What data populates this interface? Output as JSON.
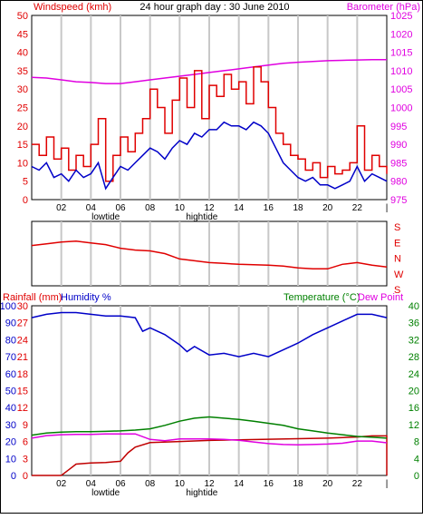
{
  "colors": {
    "red": "#e00000",
    "blue": "#0000c8",
    "magenta": "#e000e0",
    "green": "#008000",
    "darkred": "#c00000",
    "grid": "#c8c8c8"
  },
  "chart_data": [
    {
      "type": "line",
      "title": "24 hour graph day : 30 June 2010",
      "ylabel_left": "Windspeed (kmh)",
      "ylabel_right": "Barometer (hPa)",
      "ylim_left": [
        0,
        50
      ],
      "ylim_right": [
        975,
        1025
      ],
      "yticks_left": [
        "0",
        "5",
        "10",
        "15",
        "20",
        "25",
        "30",
        "35",
        "40",
        "45",
        "50"
      ],
      "yticks_right": [
        "975",
        "980",
        "985",
        "990",
        "995",
        "1000",
        "1005",
        "1010",
        "1015",
        "1020",
        "1025"
      ],
      "xlim": [
        0,
        24
      ],
      "xticks": [
        "02",
        "04",
        "06",
        "08",
        "10",
        "12",
        "14",
        "16",
        "18",
        "20",
        "22",
        "|"
      ],
      "tide_labels": [
        {
          "x": 5,
          "label": "lowtide"
        },
        {
          "x": 11.5,
          "label": "hightide"
        }
      ],
      "series": [
        {
          "color": "magenta",
          "axis": "right",
          "x": [
            0,
            1,
            2,
            3,
            4,
            5,
            6,
            7,
            8,
            9,
            10,
            11,
            12,
            13,
            14,
            15,
            16,
            17,
            18,
            19,
            20,
            21,
            22,
            23,
            24
          ],
          "values": [
            1008.2,
            1008,
            1007.5,
            1007,
            1006.8,
            1006.5,
            1006.5,
            1007,
            1007.5,
            1008,
            1008.5,
            1009,
            1009.5,
            1010,
            1010.5,
            1011,
            1011.5,
            1012,
            1012.3,
            1012.5,
            1012.7,
            1012.8,
            1012.9,
            1013,
            1013
          ]
        },
        {
          "color": "red",
          "axis": "left",
          "x": [
            0,
            0.5,
            1,
            1.5,
            2,
            2.5,
            3,
            3.5,
            4,
            4.5,
            5,
            5.5,
            6,
            6.5,
            7,
            7.5,
            8,
            8.5,
            9,
            9.5,
            10,
            10.5,
            11,
            11.5,
            12,
            12.5,
            13,
            13.5,
            14,
            14.5,
            15,
            15.5,
            16,
            16.5,
            17,
            17.5,
            18,
            18.5,
            19,
            19.5,
            20,
            20.5,
            21,
            21.5,
            22,
            22.5,
            23,
            23.5,
            24
          ],
          "values": [
            15,
            12,
            17,
            11,
            14,
            8,
            12,
            9,
            15,
            22,
            5,
            12,
            17,
            13,
            18,
            22,
            30,
            25,
            18,
            27,
            33,
            25,
            35,
            22,
            31,
            28,
            34,
            30,
            32,
            26,
            36,
            32,
            25,
            18,
            15,
            12,
            11,
            8,
            10,
            6,
            9,
            7,
            8,
            10,
            20,
            8,
            12,
            9,
            7
          ]
        },
        {
          "color": "blue",
          "axis": "left",
          "x": [
            0,
            0.5,
            1,
            1.5,
            2,
            2.5,
            3,
            3.5,
            4,
            4.5,
            5,
            5.5,
            6,
            6.5,
            7,
            7.5,
            8,
            8.5,
            9,
            9.5,
            10,
            10.5,
            11,
            11.5,
            12,
            12.5,
            13,
            13.5,
            14,
            14.5,
            15,
            15.5,
            16,
            16.5,
            17,
            17.5,
            18,
            18.5,
            19,
            19.5,
            20,
            20.5,
            21,
            21.5,
            22,
            22.5,
            23,
            23.5,
            24
          ],
          "values": [
            9,
            8,
            10,
            6,
            7,
            5,
            8,
            6,
            7,
            10,
            3,
            6,
            9,
            8,
            10,
            12,
            14,
            13,
            11,
            14,
            16,
            15,
            18,
            17,
            19,
            19,
            21,
            20,
            20,
            19,
            21,
            20,
            18,
            14,
            10,
            8,
            6,
            5,
            6,
            4,
            4,
            3,
            4,
            5,
            9,
            5,
            7,
            6,
            5
          ]
        }
      ]
    },
    {
      "type": "line",
      "ylabel_right": [
        "S",
        "E",
        "N",
        "W",
        "S"
      ],
      "xlim": [
        0,
        24
      ],
      "series": [
        {
          "color": "red",
          "x": [
            0,
            1,
            2,
            3,
            4,
            5,
            6,
            7,
            8,
            9,
            10,
            11,
            12,
            13,
            14,
            15,
            16,
            17,
            18,
            19,
            20,
            21,
            22,
            23,
            24
          ],
          "values": [
            225,
            235,
            245,
            250,
            240,
            230,
            210,
            200,
            195,
            180,
            150,
            140,
            130,
            125,
            120,
            118,
            115,
            110,
            100,
            95,
            95,
            120,
            130,
            115,
            105
          ]
        }
      ]
    },
    {
      "type": "line",
      "ylabel_left_1": "Rainfall (mm)",
      "ylabel_left_2": "Humidity %",
      "ylabel_right_1": "Temperature (°C)",
      "ylabel_right_2": "Dew Point",
      "yticks_humidity": [
        "0",
        "10",
        "20",
        "30",
        "40",
        "50",
        "60",
        "70",
        "80",
        "90",
        "100"
      ],
      "yticks_rain": [
        "0",
        "3",
        "6",
        "9",
        "12",
        "15",
        "18",
        "21",
        "24",
        "27",
        "30"
      ],
      "yticks_temp": [
        "0",
        "4",
        "8",
        "12",
        "16",
        "20",
        "24",
        "28",
        "32",
        "36",
        "40"
      ],
      "ylim_humidity": [
        0,
        100
      ],
      "ylim_rain": [
        0,
        30
      ],
      "ylim_temp": [
        0,
        40
      ],
      "xlim": [
        0,
        24
      ],
      "xticks": [
        "02",
        "04",
        "06",
        "08",
        "10",
        "12",
        "14",
        "16",
        "18",
        "20",
        "22",
        "|"
      ],
      "tide_labels": [
        {
          "x": 5,
          "label": "lowtide"
        },
        {
          "x": 11.5,
          "label": "hightide"
        }
      ],
      "series": [
        {
          "color": "blue",
          "axis": "humidity",
          "x": [
            0,
            1,
            2,
            3,
            4,
            5,
            6,
            7,
            7.5,
            8,
            9,
            10,
            10.5,
            11,
            12,
            13,
            14,
            15,
            16,
            17,
            18,
            19,
            20,
            21,
            22,
            23,
            24
          ],
          "values": [
            93,
            95,
            96,
            96,
            95,
            94,
            94,
            93,
            85,
            87,
            83,
            77,
            73,
            76,
            71,
            72,
            70,
            72,
            70,
            74,
            78,
            83,
            87,
            91,
            95,
            95,
            93
          ]
        },
        {
          "color": "green",
          "axis": "temp",
          "x": [
            0,
            1,
            2,
            3,
            4,
            5,
            6,
            7,
            8,
            9,
            10,
            11,
            12,
            13,
            14,
            15,
            16,
            17,
            18,
            19,
            20,
            21,
            22,
            23,
            24
          ],
          "values": [
            9.5,
            10,
            10.2,
            10.3,
            10.3,
            10.4,
            10.5,
            10.7,
            11,
            11.8,
            12.8,
            13.5,
            13.8,
            13.5,
            13.2,
            12.8,
            12.3,
            11.8,
            11,
            10.5,
            10,
            9.6,
            9.2,
            9,
            8.8
          ]
        },
        {
          "color": "magenta",
          "axis": "temp",
          "x": [
            0,
            1,
            2,
            3,
            4,
            5,
            6,
            7,
            8,
            9,
            10,
            11,
            12,
            13,
            14,
            15,
            16,
            17,
            18,
            19,
            20,
            21,
            22,
            23,
            24
          ],
          "values": [
            8.8,
            9.4,
            9.6,
            9.7,
            9.7,
            9.8,
            9.8,
            9.8,
            8.5,
            8.2,
            8.6,
            8.6,
            8.6,
            8.5,
            8.3,
            7.9,
            7.5,
            7.3,
            7.2,
            7.3,
            7.4,
            7.6,
            8.1,
            8.1,
            7.7
          ]
        },
        {
          "color": "darkred",
          "axis": "rain",
          "x": [
            0,
            1,
            2,
            2.5,
            3,
            4,
            5,
            6,
            6.5,
            7,
            8,
            10,
            12,
            14,
            16,
            18,
            20,
            22,
            23,
            24,
            24
          ],
          "values": [
            0,
            0,
            0,
            1,
            2,
            2.2,
            2.3,
            2.5,
            4,
            5,
            5.8,
            6,
            6.2,
            6.3,
            6.4,
            6.5,
            6.6,
            6.8,
            7,
            7,
            0
          ]
        }
      ]
    }
  ]
}
